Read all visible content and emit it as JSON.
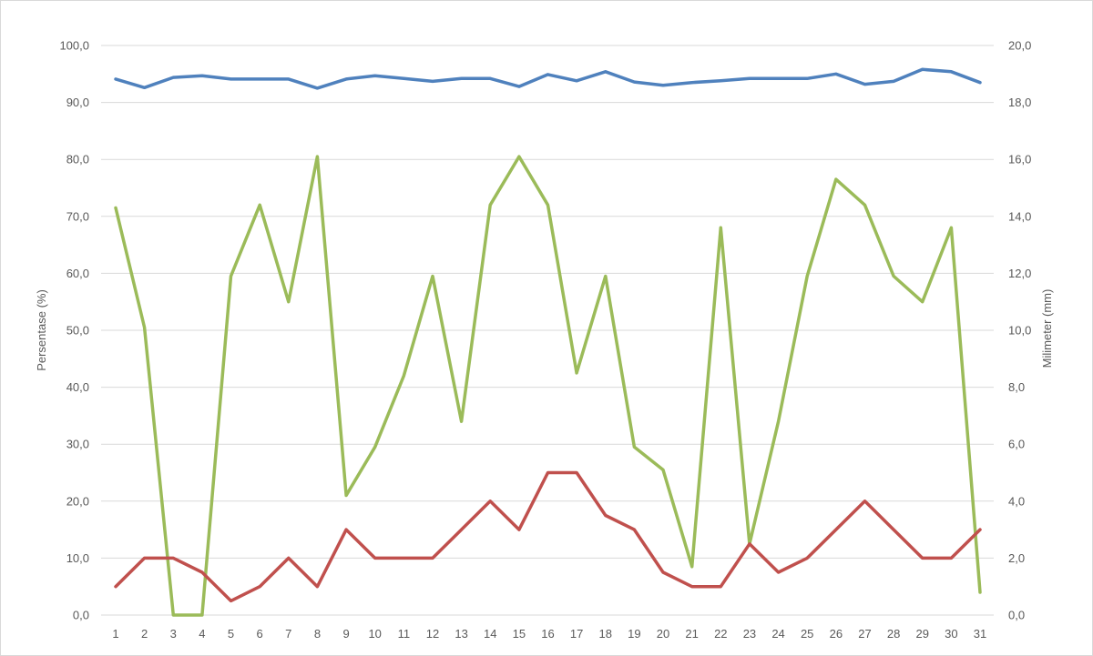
{
  "chart_data": {
    "type": "line",
    "x": [
      1,
      2,
      3,
      4,
      5,
      6,
      7,
      8,
      9,
      10,
      11,
      12,
      13,
      14,
      15,
      16,
      17,
      18,
      19,
      20,
      21,
      22,
      23,
      24,
      25,
      26,
      27,
      28,
      29,
      30,
      31
    ],
    "left_axis": {
      "label": "Persentase (%)",
      "range": [
        0,
        100
      ],
      "ticks": [
        "0,0",
        "10,0",
        "20,0",
        "30,0",
        "40,0",
        "50,0",
        "60,0",
        "70,0",
        "80,0",
        "90,0",
        "100,0"
      ]
    },
    "right_axis": {
      "label": "Milimeter (mm)",
      "range": [
        0,
        20
      ],
      "ticks": [
        "0,0",
        "2,0",
        "4,0",
        "6,0",
        "8,0",
        "10,0",
        "12,0",
        "14,0",
        "16,0",
        "18,0",
        "20,0"
      ]
    },
    "grid": true,
    "series": [
      {
        "color": "#4f81bd",
        "axis": "left",
        "values": [
          94.1,
          92.6,
          94.4,
          94.7,
          94.1,
          94.1,
          94.1,
          92.5,
          94.1,
          94.7,
          94.2,
          93.7,
          94.2,
          94.2,
          92.8,
          94.9,
          93.8,
          95.4,
          93.6,
          93.0,
          93.5,
          93.8,
          94.2,
          94.2,
          94.2,
          95.0,
          93.2,
          93.7,
          95.8,
          95.4,
          93.5
        ]
      },
      {
        "color": "#9bbb59",
        "axis": "right",
        "values": [
          14.3,
          10.1,
          0.0,
          0.0,
          11.9,
          14.4,
          11.0,
          16.1,
          4.2,
          5.9,
          8.4,
          11.9,
          6.8,
          14.4,
          16.1,
          14.4,
          8.5,
          11.9,
          5.9,
          5.1,
          1.7,
          13.6,
          2.5,
          6.8,
          11.9,
          15.3,
          14.4,
          11.9,
          11.0,
          13.6,
          0.8
        ]
      },
      {
        "color": "#c0504d",
        "axis": "left",
        "values": [
          5,
          10,
          10,
          7.5,
          2.5,
          5,
          10,
          5,
          15,
          10,
          10,
          10,
          15,
          20,
          15,
          25,
          25,
          17.5,
          15,
          7.5,
          5,
          5,
          12.5,
          7.5,
          10,
          15,
          20,
          15,
          10,
          10,
          15
        ]
      }
    ]
  }
}
